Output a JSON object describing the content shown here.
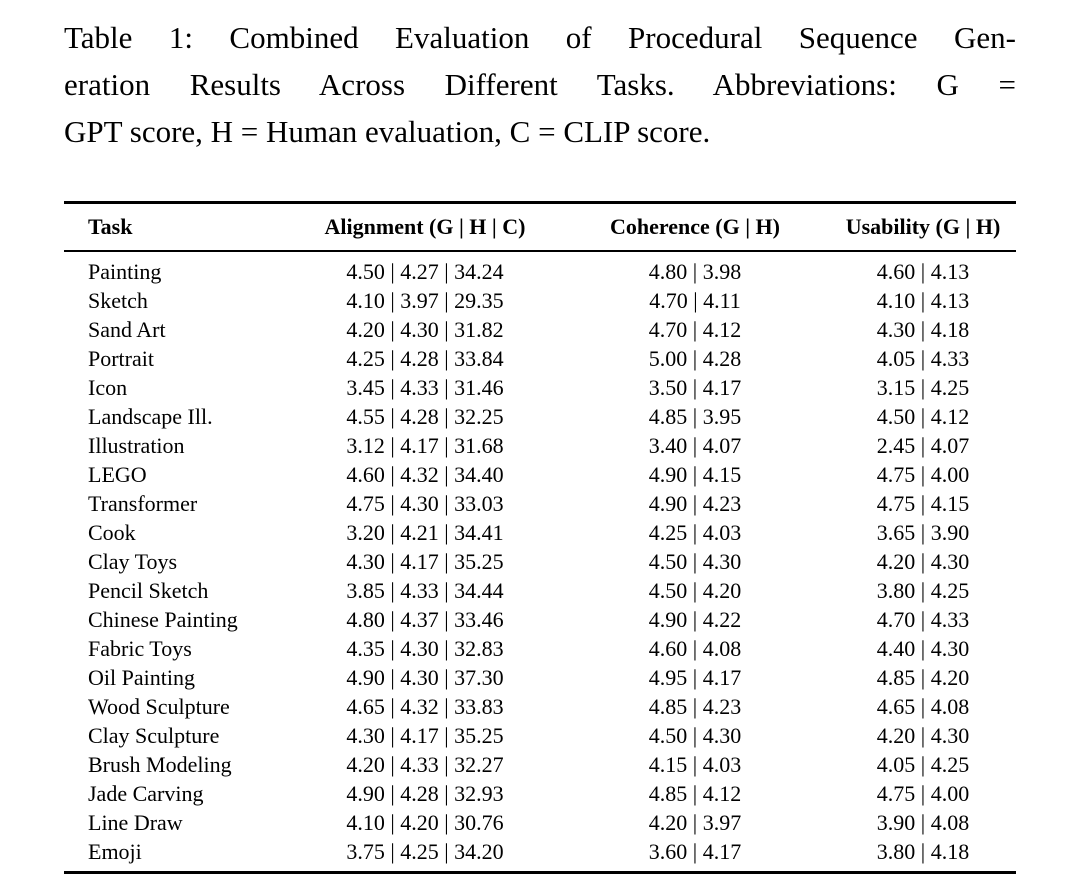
{
  "colors": {
    "text": "#000000",
    "background": "#ffffff",
    "rule": "#000000"
  },
  "caption": {
    "label": "Table 1:",
    "lines": [
      "Table 1: Combined Evaluation of Procedural Sequence Gen-",
      "eration Results Across Different Tasks. Abbreviations: G =",
      "GPT score, H = Human evaluation, C = CLIP score."
    ]
  },
  "table": {
    "columns": [
      "Task",
      "Alignment (G | H | C)",
      "Coherence (G | H)",
      "Usability (G | H)"
    ],
    "separator": " | ",
    "rows": [
      {
        "task": "Painting",
        "alignment": [
          4.5,
          4.27,
          34.24
        ],
        "coherence": [
          4.8,
          3.98
        ],
        "usability": [
          4.6,
          4.13
        ]
      },
      {
        "task": "Sketch",
        "alignment": [
          4.1,
          3.97,
          29.35
        ],
        "coherence": [
          4.7,
          4.11
        ],
        "usability": [
          4.1,
          4.13
        ]
      },
      {
        "task": "Sand Art",
        "alignment": [
          4.2,
          4.3,
          31.82
        ],
        "coherence": [
          4.7,
          4.12
        ],
        "usability": [
          4.3,
          4.18
        ]
      },
      {
        "task": "Portrait",
        "alignment": [
          4.25,
          4.28,
          33.84
        ],
        "coherence": [
          5.0,
          4.28
        ],
        "usability": [
          4.05,
          4.33
        ]
      },
      {
        "task": "Icon",
        "alignment": [
          3.45,
          4.33,
          31.46
        ],
        "coherence": [
          3.5,
          4.17
        ],
        "usability": [
          3.15,
          4.25
        ]
      },
      {
        "task": "Landscape Ill.",
        "alignment": [
          4.55,
          4.28,
          32.25
        ],
        "coherence": [
          4.85,
          3.95
        ],
        "usability": [
          4.5,
          4.12
        ]
      },
      {
        "task": "Illustration",
        "alignment": [
          3.12,
          4.17,
          31.68
        ],
        "coherence": [
          3.4,
          4.07
        ],
        "usability": [
          2.45,
          4.07
        ]
      },
      {
        "task": "LEGO",
        "alignment": [
          4.6,
          4.32,
          34.4
        ],
        "coherence": [
          4.9,
          4.15
        ],
        "usability": [
          4.75,
          4.0
        ]
      },
      {
        "task": "Transformer",
        "alignment": [
          4.75,
          4.3,
          33.03
        ],
        "coherence": [
          4.9,
          4.23
        ],
        "usability": [
          4.75,
          4.15
        ]
      },
      {
        "task": "Cook",
        "alignment": [
          3.2,
          4.21,
          34.41
        ],
        "coherence": [
          4.25,
          4.03
        ],
        "usability": [
          3.65,
          3.9
        ]
      },
      {
        "task": "Clay Toys",
        "alignment": [
          4.3,
          4.17,
          35.25
        ],
        "coherence": [
          4.5,
          4.3
        ],
        "usability": [
          4.2,
          4.3
        ]
      },
      {
        "task": "Pencil Sketch",
        "alignment": [
          3.85,
          4.33,
          34.44
        ],
        "coherence": [
          4.5,
          4.2
        ],
        "usability": [
          3.8,
          4.25
        ]
      },
      {
        "task": "Chinese Painting",
        "alignment": [
          4.8,
          4.37,
          33.46
        ],
        "coherence": [
          4.9,
          4.22
        ],
        "usability": [
          4.7,
          4.33
        ]
      },
      {
        "task": "Fabric Toys",
        "alignment": [
          4.35,
          4.3,
          32.83
        ],
        "coherence": [
          4.6,
          4.08
        ],
        "usability": [
          4.4,
          4.3
        ]
      },
      {
        "task": "Oil Painting",
        "alignment": [
          4.9,
          4.3,
          37.3
        ],
        "coherence": [
          4.95,
          4.17
        ],
        "usability": [
          4.85,
          4.2
        ]
      },
      {
        "task": "Wood Sculpture",
        "alignment": [
          4.65,
          4.32,
          33.83
        ],
        "coherence": [
          4.85,
          4.23
        ],
        "usability": [
          4.65,
          4.08
        ]
      },
      {
        "task": "Clay Sculpture",
        "alignment": [
          4.3,
          4.17,
          35.25
        ],
        "coherence": [
          4.5,
          4.3
        ],
        "usability": [
          4.2,
          4.3
        ]
      },
      {
        "task": "Brush Modeling",
        "alignment": [
          4.2,
          4.33,
          32.27
        ],
        "coherence": [
          4.15,
          4.03
        ],
        "usability": [
          4.05,
          4.25
        ]
      },
      {
        "task": "Jade Carving",
        "alignment": [
          4.9,
          4.28,
          32.93
        ],
        "coherence": [
          4.85,
          4.12
        ],
        "usability": [
          4.75,
          4.0
        ]
      },
      {
        "task": "Line Draw",
        "alignment": [
          4.1,
          4.2,
          30.76
        ],
        "coherence": [
          4.2,
          3.97
        ],
        "usability": [
          3.9,
          4.08
        ]
      },
      {
        "task": "Emoji",
        "alignment": [
          3.75,
          4.25,
          34.2
        ],
        "coherence": [
          3.6,
          4.17
        ],
        "usability": [
          3.8,
          4.18
        ]
      }
    ]
  }
}
